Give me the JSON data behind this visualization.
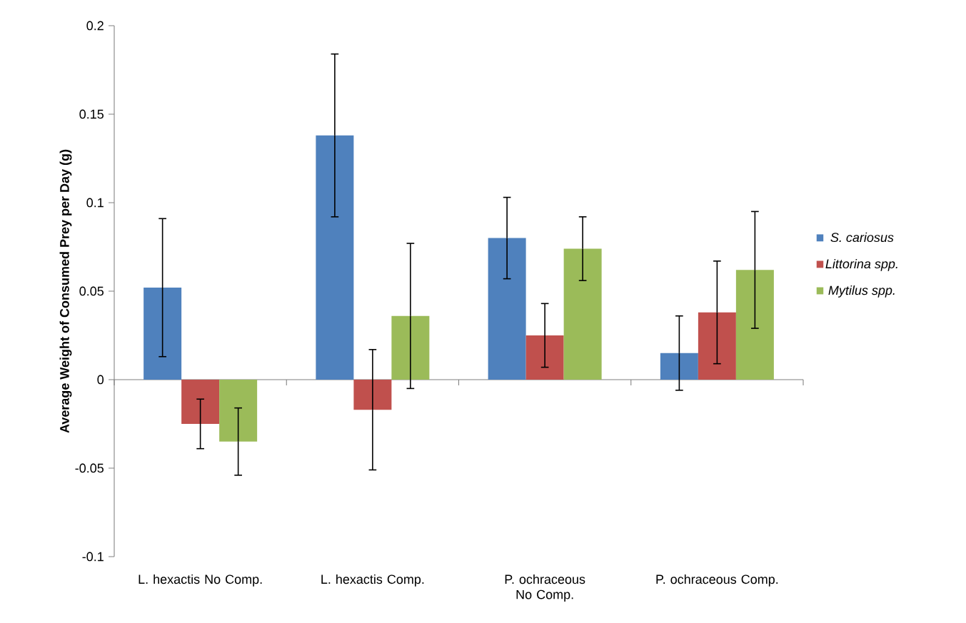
{
  "chart_data": {
    "type": "bar",
    "ylabel": "Average Weight of Consumed Prey per Day (g)",
    "categories": [
      "L. hexactis No Comp.",
      "L. hexactis Comp.",
      "P. ochraceous No Comp.",
      "P. ochraceous Comp."
    ],
    "series": [
      {
        "name": "S. cariosus",
        "color": "#4f81bd",
        "values": [
          0.052,
          0.138,
          0.08,
          0.015
        ],
        "errors": [
          0.039,
          0.046,
          0.023,
          0.021
        ]
      },
      {
        "name": "Littorina spp.",
        "color": "#c0504d",
        "values": [
          -0.025,
          -0.017,
          0.025,
          0.038
        ],
        "errors": [
          0.014,
          0.034,
          0.018,
          0.029
        ]
      },
      {
        "name": "Mytilus spp.",
        "color": "#9bbb59",
        "values": [
          -0.035,
          0.036,
          0.074,
          0.062
        ],
        "errors": [
          0.019,
          0.041,
          0.018,
          0.033
        ]
      }
    ],
    "ylim": [
      -0.1,
      0.2
    ],
    "yticks": [
      -0.1,
      -0.05,
      0,
      0.05,
      0.1,
      0.15,
      0.2
    ],
    "legend": "right"
  }
}
